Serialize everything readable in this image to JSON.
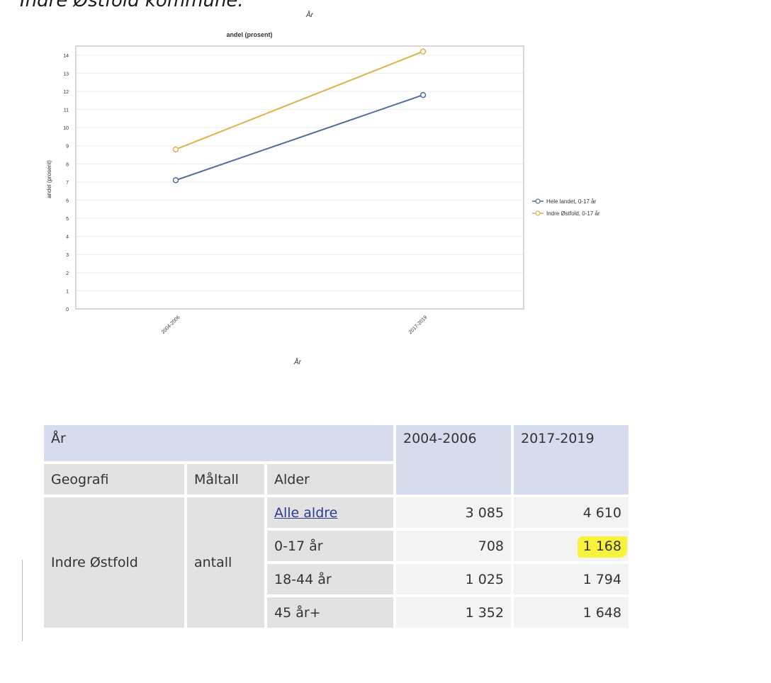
{
  "page": {
    "title": "Indre Østfold kommune."
  },
  "chart_data": {
    "type": "line",
    "title": "andel (prosent)",
    "top_axis_label": "År",
    "xlabel": "År",
    "ylabel": "andel (prosent)",
    "categories": [
      "2004-2006",
      "2017-2019"
    ],
    "ylim": [
      0,
      14.5
    ],
    "y_ticks": [
      0,
      1,
      2,
      3,
      4,
      5,
      6,
      7,
      8,
      9,
      10,
      11,
      12,
      13,
      14
    ],
    "grid": true,
    "legend_position": "right",
    "series": [
      {
        "name": "Hele landet, 0-17 år",
        "values": [
          7.1,
          11.8
        ],
        "color": "#4d6e9c"
      },
      {
        "name": "Indre Østfold, 0-17 år",
        "values": [
          8.8,
          14.2
        ],
        "color": "#d9b44a"
      }
    ]
  },
  "table": {
    "year_label": "År",
    "years": [
      "2004-2006",
      "2017-2019"
    ],
    "col_headers": [
      "Geografi",
      "Måltall",
      "Alder"
    ],
    "geografi": "Indre Østfold",
    "maltall": "antall",
    "rows": [
      {
        "alder": "Alle aldre",
        "link": true,
        "v1": "3 085",
        "v2": "4 610",
        "highlight": false
      },
      {
        "alder": "0-17 år",
        "link": false,
        "v1": "708",
        "v2": "1 168",
        "highlight": true
      },
      {
        "alder": "18-44 år",
        "link": false,
        "v1": "1 025",
        "v2": "1 794",
        "highlight": false
      },
      {
        "alder": "45 år+",
        "link": false,
        "v1": "1 352",
        "v2": "1 648",
        "highlight": false
      }
    ],
    "highlight_color": "#f7f23a"
  }
}
